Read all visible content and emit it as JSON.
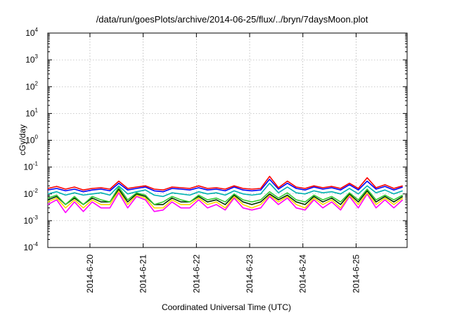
{
  "chart_data": {
    "type": "line",
    "title": "/data/run/goesPlots/archive/2014-06-25/flux/../bryn/7daysMoon.plot",
    "xlabel": "Coordinated Universal Time (UTC)",
    "ylabel": "cGy/day",
    "y_scale": "log",
    "ylim": [
      0.0001,
      10000
    ],
    "y_ticks": [
      {
        "base": "10",
        "exp": "-4",
        "value": 0.0001
      },
      {
        "base": "10",
        "exp": "-3",
        "value": 0.001
      },
      {
        "base": "10",
        "exp": "-2",
        "value": 0.01
      },
      {
        "base": "10",
        "exp": "-1",
        "value": 0.1
      },
      {
        "base": "10",
        "exp": "0",
        "value": 1
      },
      {
        "base": "10",
        "exp": "1",
        "value": 10
      },
      {
        "base": "10",
        "exp": "2",
        "value": 100
      },
      {
        "base": "10",
        "exp": "3",
        "value": 1000
      },
      {
        "base": "10",
        "exp": "4",
        "value": 10000
      }
    ],
    "xlim": [
      "2014-06-19 05:00",
      "2014-06-25 23:00"
    ],
    "x_ticks": [
      "2014-6-20",
      "2014-6-21",
      "2014-6-22",
      "2014-6-23",
      "2014-6-24",
      "2014-6-25"
    ],
    "grid": true,
    "x": [
      "2014-06-19 05:00",
      "2014-06-19 09:00",
      "2014-06-19 13:00",
      "2014-06-19 17:00",
      "2014-06-19 21:00",
      "2014-06-20 01:00",
      "2014-06-20 05:00",
      "2014-06-20 09:00",
      "2014-06-20 13:00",
      "2014-06-20 17:00",
      "2014-06-20 21:00",
      "2014-06-21 01:00",
      "2014-06-21 05:00",
      "2014-06-21 09:00",
      "2014-06-21 13:00",
      "2014-06-21 17:00",
      "2014-06-21 21:00",
      "2014-06-22 01:00",
      "2014-06-22 05:00",
      "2014-06-22 09:00",
      "2014-06-22 13:00",
      "2014-06-22 17:00",
      "2014-06-22 21:00",
      "2014-06-23 01:00",
      "2014-06-23 05:00",
      "2014-06-23 09:00",
      "2014-06-23 13:00",
      "2014-06-23 17:00",
      "2014-06-23 21:00",
      "2014-06-24 01:00",
      "2014-06-24 05:00",
      "2014-06-24 09:00",
      "2014-06-24 13:00",
      "2014-06-24 17:00",
      "2014-06-24 21:00",
      "2014-06-25 01:00",
      "2014-06-25 05:00",
      "2014-06-25 09:00",
      "2014-06-25 13:00",
      "2014-06-25 17:00",
      "2014-06-25 21:00"
    ],
    "series": [
      {
        "color": "#ff0000",
        "values": [
          0.016,
          0.019,
          0.015,
          0.018,
          0.014,
          0.016,
          0.017,
          0.015,
          0.03,
          0.016,
          0.018,
          0.02,
          0.015,
          0.014,
          0.018,
          0.017,
          0.016,
          0.02,
          0.016,
          0.017,
          0.015,
          0.02,
          0.016,
          0.015,
          0.016,
          0.045,
          0.017,
          0.03,
          0.018,
          0.016,
          0.02,
          0.017,
          0.019,
          0.016,
          0.025,
          0.016,
          0.04,
          0.017,
          0.022,
          0.016,
          0.02
        ]
      },
      {
        "color": "#0000ff",
        "values": [
          0.014,
          0.016,
          0.013,
          0.015,
          0.012,
          0.014,
          0.015,
          0.013,
          0.025,
          0.014,
          0.016,
          0.018,
          0.013,
          0.012,
          0.016,
          0.015,
          0.014,
          0.017,
          0.014,
          0.015,
          0.013,
          0.018,
          0.014,
          0.013,
          0.014,
          0.035,
          0.015,
          0.025,
          0.016,
          0.014,
          0.018,
          0.015,
          0.017,
          0.014,
          0.022,
          0.014,
          0.03,
          0.015,
          0.019,
          0.014,
          0.018
        ]
      },
      {
        "color": "#00b0b0",
        "values": [
          0.01,
          0.012,
          0.009,
          0.011,
          0.009,
          0.01,
          0.011,
          0.009,
          0.02,
          0.01,
          0.012,
          0.014,
          0.009,
          0.008,
          0.011,
          0.01,
          0.009,
          0.012,
          0.01,
          0.011,
          0.009,
          0.013,
          0.01,
          0.009,
          0.01,
          0.025,
          0.011,
          0.018,
          0.011,
          0.01,
          0.013,
          0.011,
          0.012,
          0.01,
          0.016,
          0.01,
          0.02,
          0.011,
          0.014,
          0.01,
          0.013
        ]
      },
      {
        "color": "#33cc33",
        "values": [
          0.007,
          0.009,
          0.004,
          0.008,
          0.004,
          0.008,
          0.006,
          0.005,
          0.018,
          0.006,
          0.011,
          0.009,
          0.004,
          0.005,
          0.008,
          0.006,
          0.005,
          0.009,
          0.006,
          0.007,
          0.005,
          0.01,
          0.006,
          0.005,
          0.006,
          0.012,
          0.007,
          0.011,
          0.006,
          0.005,
          0.009,
          0.006,
          0.008,
          0.005,
          0.011,
          0.006,
          0.015,
          0.006,
          0.009,
          0.006,
          0.009
        ]
      },
      {
        "color": "#003300",
        "values": [
          0.006,
          0.008,
          0.004,
          0.007,
          0.004,
          0.007,
          0.005,
          0.005,
          0.015,
          0.005,
          0.01,
          0.008,
          0.004,
          0.004,
          0.007,
          0.005,
          0.005,
          0.008,
          0.005,
          0.006,
          0.004,
          0.009,
          0.005,
          0.004,
          0.005,
          0.01,
          0.006,
          0.009,
          0.005,
          0.004,
          0.008,
          0.005,
          0.007,
          0.004,
          0.01,
          0.005,
          0.013,
          0.005,
          0.008,
          0.005,
          0.008
        ]
      },
      {
        "color": "#ffd700",
        "values": [
          0.005,
          0.007,
          0.003,
          0.006,
          0.003,
          0.006,
          0.004,
          0.004,
          0.013,
          0.004,
          0.009,
          0.007,
          0.003,
          0.003,
          0.006,
          0.004,
          0.004,
          0.007,
          0.004,
          0.005,
          0.003,
          0.008,
          0.004,
          0.003,
          0.004,
          0.009,
          0.005,
          0.008,
          0.004,
          0.003,
          0.007,
          0.004,
          0.006,
          0.003,
          0.009,
          0.004,
          0.011,
          0.004,
          0.007,
          0.004,
          0.007
        ]
      },
      {
        "color": "#ff00ff",
        "values": [
          0.004,
          0.006,
          0.002,
          0.005,
          0.0022,
          0.005,
          0.003,
          0.003,
          0.011,
          0.003,
          0.008,
          0.006,
          0.0022,
          0.0025,
          0.005,
          0.003,
          0.003,
          0.006,
          0.003,
          0.004,
          0.0025,
          0.007,
          0.003,
          0.0025,
          0.003,
          0.008,
          0.004,
          0.007,
          0.003,
          0.0025,
          0.006,
          0.003,
          0.005,
          0.0025,
          0.008,
          0.003,
          0.01,
          0.003,
          0.006,
          0.003,
          0.006
        ]
      }
    ]
  }
}
